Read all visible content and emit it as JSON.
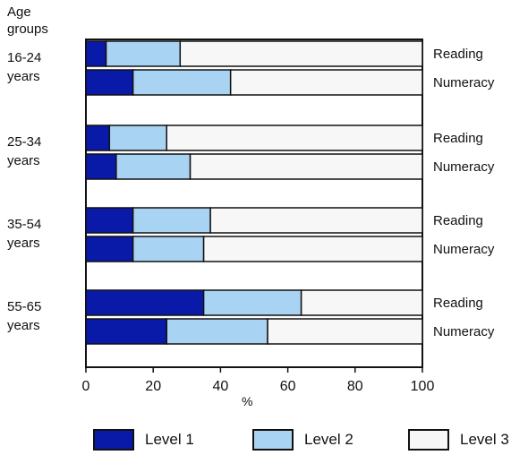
{
  "chart_data": {
    "type": "bar",
    "orientation": "horizontal",
    "stacked": true,
    "y_axis_title": "Age\ngroups",
    "x_axis_title": "%",
    "xlim": [
      0,
      100
    ],
    "x_ticks": [
      "0",
      "20",
      "40",
      "60",
      "80",
      "100"
    ],
    "groups": [
      {
        "label": "16-24\nyears",
        "rows": [
          {
            "label": "Reading",
            "values": [
              6,
              22,
              72
            ]
          },
          {
            "label": "Numeracy",
            "values": [
              14,
              29,
              57
            ]
          }
        ]
      },
      {
        "label": "25-34\nyears",
        "rows": [
          {
            "label": "Reading",
            "values": [
              7,
              17,
              76
            ]
          },
          {
            "label": "Numeracy",
            "values": [
              9,
              22,
              69
            ]
          }
        ]
      },
      {
        "label": "35-54\nyears",
        "rows": [
          {
            "label": "Reading",
            "values": [
              14,
              23,
              63
            ]
          },
          {
            "label": "Numeracy",
            "values": [
              14,
              21,
              65
            ]
          }
        ]
      },
      {
        "label": "55-65\nyears",
        "rows": [
          {
            "label": "Reading",
            "values": [
              35,
              29,
              36
            ]
          },
          {
            "label": "Numeracy",
            "values": [
              24,
              30,
              46
            ]
          }
        ]
      }
    ],
    "series": [
      {
        "name": "Level 1",
        "color": "#0a1aa8"
      },
      {
        "name": "Level 2",
        "color": "#a9d3f2"
      },
      {
        "name": "Level 3",
        "color": "#f7f7f7"
      }
    ],
    "legend_position": "bottom"
  }
}
